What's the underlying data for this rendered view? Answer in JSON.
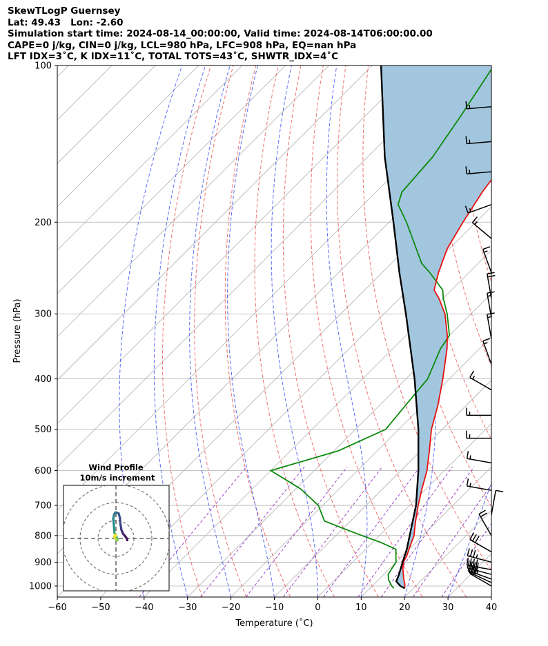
{
  "header": {
    "line1": "SkewTLogP Guernsey",
    "line2": "Lat: 49.43   Lon: -2.60",
    "line3": "Simulation start time: 2024-08-14_00:00:00, Valid time: 2024-08-14T06:00:00.00",
    "line4": "CAPE=0 j/kg, CIN=0 j/kg, LCL=980 hPa, LFC=908 hPa, EQ=nan hPa",
    "line5": "LFT IDX=3˚C, K IDX=11˚C, TOTAL TOTS=43˚C, SHWTR_IDX=4˚C"
  },
  "colors": {
    "temperature": "#e8100e",
    "dewpoint": "#0a8a0a",
    "parcel": "#000000",
    "cape_fill": "#a3c6df",
    "dry_adiabat": "#f07070",
    "moist_adiabat": "#5a6af5",
    "mixing_ratio": "#9a44c0",
    "isotherm": "#b0b0b0",
    "grid": "#b0b0b0"
  },
  "chart_data": {
    "type": "line",
    "title": "SkewTLogP Guernsey",
    "xlabel": "Temperature (˚C)",
    "ylabel": "Pressure (hPa)",
    "xlim": [
      -60,
      40
    ],
    "ylim": [
      1050,
      100
    ],
    "yscale": "log",
    "x_ticks": [
      "−60",
      "−50",
      "−40",
      "−30",
      "−20",
      "−10",
      "0",
      "10",
      "20",
      "30",
      "40"
    ],
    "y_ticks": [
      "100",
      "200",
      "300",
      "400",
      "500",
      "600",
      "700",
      "800",
      "900",
      "1000"
    ],
    "series": [
      {
        "key": "temperature",
        "p": [
          1010,
          1000,
          990,
          975,
          950,
          925,
          900,
          875,
          850,
          825,
          800,
          775,
          750,
          700,
          650,
          600,
          550,
          500,
          450,
          400,
          350,
          330,
          300,
          280,
          270,
          250,
          225,
          200,
          175,
          150,
          125,
          100
        ],
        "t": [
          18,
          17.5,
          17,
          16,
          14.5,
          13,
          11.7,
          11,
          10,
          9,
          8,
          6.5,
          5,
          2,
          -1,
          -4,
          -8,
          -12.5,
          -16.5,
          -21.5,
          -27.5,
          -30.5,
          -36,
          -41,
          -44,
          -47,
          -50.5,
          -53,
          -55.5,
          -57.5,
          -59.5,
          -62
        ]
      },
      {
        "key": "dewpoint",
        "p": [
          1010,
          1000,
          975,
          950,
          925,
          900,
          875,
          850,
          825,
          800,
          775,
          750,
          700,
          650,
          600,
          550,
          500,
          450,
          400,
          350,
          330,
          300,
          280,
          270,
          250,
          240,
          200,
          185,
          175,
          150,
          125,
          100
        ],
        "t": [
          15.5,
          14.5,
          12.5,
          11,
          10.5,
          10,
          8.5,
          7,
          2,
          -4,
          -10,
          -16,
          -21,
          -29,
          -40,
          -29,
          -23,
          -24,
          -25,
          -29,
          -30,
          -35.5,
          -40,
          -42,
          -49,
          -53,
          -66,
          -72,
          -74,
          -75,
          -78,
          -82
        ]
      },
      {
        "key": "parcel",
        "p": [
          1010,
          1000,
          980,
          950,
          900,
          850,
          800,
          700,
          600,
          500,
          400,
          300,
          250,
          200,
          150,
          100
        ],
        "t": [
          18,
          16.5,
          14.5,
          13.5,
          11.5,
          9.5,
          7,
          1.5,
          -6,
          -15.5,
          -28,
          -45,
          -56,
          -69,
          -86,
          -108
        ]
      }
    ],
    "wind_barbs": {
      "p": [
        1000,
        985,
        970,
        950,
        930,
        900,
        860,
        800,
        730,
        655,
        580,
        520,
        470,
        420,
        375,
        335,
        305,
        280,
        250,
        215,
        185,
        160,
        140,
        120
      ],
      "speed_kt": [
        20,
        30,
        35,
        40,
        40,
        35,
        30,
        20,
        10,
        15,
        15,
        15,
        15,
        15,
        15,
        15,
        15,
        20,
        15,
        15,
        15,
        15,
        15,
        15
      ],
      "direction_deg": [
        300,
        295,
        290,
        285,
        280,
        285,
        300,
        330,
        10,
        280,
        280,
        270,
        270,
        300,
        340,
        350,
        350,
        350,
        340,
        310,
        250,
        265,
        265,
        265
      ]
    },
    "hodograph": {
      "title": "Wind Profile",
      "subtitle": "10m/s increment",
      "u": [
        6.3,
        6.0,
        5.0,
        4.0,
        3.0,
        2.5,
        2.2,
        1.5,
        0.0,
        -0.3,
        -1.0,
        -1.5,
        -1.2,
        -1.0,
        -0.8,
        0.0,
        0.5,
        1.0,
        0.8,
        0.5,
        0.8,
        0.0,
        -0.5,
        -1.0,
        -0.5,
        0.0
      ],
      "v": [
        -1.0,
        0.0,
        1.5,
        2.5,
        5.0,
        8.0,
        11.5,
        14.0,
        14.5,
        14.5,
        13.5,
        11.0,
        8.0,
        5.0,
        3.0,
        1.5,
        0.5,
        -0.5,
        -1.0,
        -1.2,
        -0.8,
        -0.5,
        0.0,
        1.0,
        2.0,
        1.5
      ]
    }
  }
}
